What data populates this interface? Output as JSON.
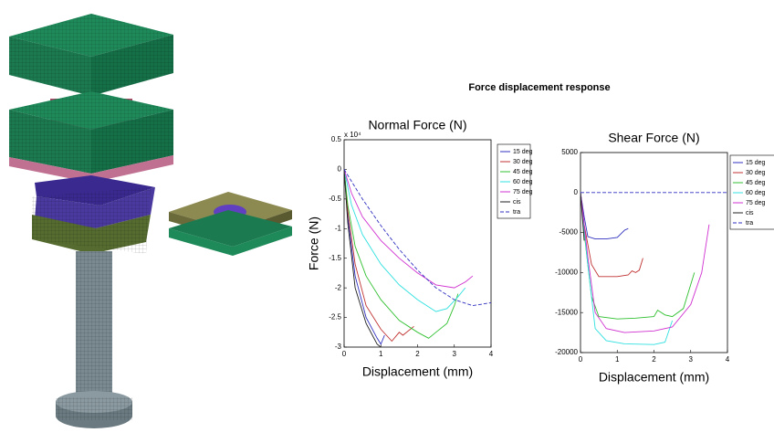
{
  "figure_title": "Force displacement response",
  "chart_data": [
    {
      "type": "line",
      "title": "Normal Force (N)",
      "x_label": "Displacement (mm)",
      "y_label": "Force (N)",
      "y_multiplier": "x 10⁴",
      "xlim": [
        0,
        4
      ],
      "xticks": [
        0,
        1,
        2,
        3,
        4
      ],
      "ylim": [
        -3,
        0.5
      ],
      "yticks": [
        0.5,
        0,
        -0.5,
        -1,
        -1.5,
        -2,
        -2.5,
        -3
      ],
      "series": [
        {
          "name": "15 deg",
          "color": "#3030c0",
          "line_style": "solid",
          "x": [
            0,
            0.1,
            0.3,
            0.6,
            0.9,
            1.0,
            1.1
          ],
          "values": [
            0,
            -0.8,
            -1.8,
            -2.5,
            -2.85,
            -2.95,
            -2.8
          ]
        },
        {
          "name": "30 deg",
          "color": "#c03030",
          "line_style": "solid",
          "x": [
            0,
            0.1,
            0.3,
            0.6,
            1.0,
            1.3,
            1.5,
            1.6,
            1.9
          ],
          "values": [
            0,
            -0.7,
            -1.6,
            -2.3,
            -2.7,
            -2.9,
            -2.75,
            -2.8,
            -2.65
          ]
        },
        {
          "name": "45 deg",
          "color": "#30c030",
          "line_style": "solid",
          "x": [
            0,
            0.1,
            0.3,
            0.6,
            1.0,
            1.5,
            2.0,
            2.3,
            2.5,
            2.8,
            3.0,
            3.1
          ],
          "values": [
            0,
            -0.6,
            -1.3,
            -1.8,
            -2.2,
            -2.55,
            -2.75,
            -2.85,
            -2.75,
            -2.6,
            -2.3,
            -2.1
          ]
        },
        {
          "name": "60 deg",
          "color": "#30e0e0",
          "line_style": "solid",
          "x": [
            0,
            0.2,
            0.5,
            1.0,
            1.5,
            2.0,
            2.5,
            2.8,
            3.1,
            3.3
          ],
          "values": [
            0,
            -0.6,
            -1.1,
            -1.6,
            -1.95,
            -2.2,
            -2.4,
            -2.35,
            -2.15,
            -2.0
          ]
        },
        {
          "name": "75 deg",
          "color": "#d030d0",
          "line_style": "solid",
          "x": [
            0,
            0.2,
            0.5,
            1.0,
            1.5,
            2.0,
            2.5,
            3.0,
            3.3,
            3.5
          ],
          "values": [
            0,
            -0.4,
            -0.8,
            -1.2,
            -1.5,
            -1.75,
            -1.95,
            -2.0,
            -1.9,
            -1.8
          ]
        },
        {
          "name": "cis",
          "color": "#202020",
          "line_style": "solid",
          "x": [
            0,
            0.1,
            0.3,
            0.6,
            0.9,
            1.0
          ],
          "values": [
            0,
            -0.9,
            -2.0,
            -2.6,
            -2.95,
            -3.0
          ]
        },
        {
          "name": "tra",
          "color": "#3030c0",
          "line_style": "dashed",
          "x": [
            0,
            0.5,
            1,
            1.5,
            2,
            2.5,
            3,
            3.5,
            4
          ],
          "values": [
            0,
            -0.5,
            -0.95,
            -1.35,
            -1.7,
            -2.0,
            -2.2,
            -2.3,
            -2.25
          ]
        }
      ]
    },
    {
      "type": "line",
      "title": "Shear Force (N)",
      "x_label": "Displacement (mm)",
      "xlim": [
        0,
        4
      ],
      "xticks": [
        0,
        1,
        2,
        3,
        4
      ],
      "ylim": [
        -20000,
        5000
      ],
      "yticks": [
        5000,
        0,
        -5000,
        -10000,
        -15000,
        -20000
      ],
      "series": [
        {
          "name": "15 deg",
          "color": "#3030c0",
          "line_style": "solid",
          "x": [
            0,
            0.1,
            0.2,
            0.4,
            0.7,
            1.0,
            1.2,
            1.3
          ],
          "values": [
            0,
            -3000,
            -5500,
            -5800,
            -5800,
            -5600,
            -4700,
            -4500
          ]
        },
        {
          "name": "30 deg",
          "color": "#c03030",
          "line_style": "solid",
          "x": [
            0,
            0.1,
            0.3,
            0.5,
            1.0,
            1.3,
            1.4,
            1.5,
            1.6,
            1.7
          ],
          "values": [
            0,
            -4000,
            -9000,
            -10500,
            -10500,
            -10300,
            -9800,
            -10000,
            -9700,
            -8200
          ]
        },
        {
          "name": "45 deg",
          "color": "#30c030",
          "line_style": "solid",
          "x": [
            0,
            0.1,
            0.3,
            0.5,
            1.0,
            1.5,
            2.0,
            2.1,
            2.3,
            2.5,
            2.8,
            3.1
          ],
          "values": [
            0,
            -5000,
            -13000,
            -15500,
            -15800,
            -15700,
            -15500,
            -14700,
            -15300,
            -15500,
            -14500,
            -10000
          ]
        },
        {
          "name": "60 deg",
          "color": "#30e0e0",
          "line_style": "solid",
          "x": [
            0,
            0.2,
            0.4,
            0.7,
            1.2,
            2.0,
            2.3,
            2.5
          ],
          "values": [
            0,
            -9000,
            -17000,
            -18500,
            -18900,
            -19000,
            -18700,
            -16000
          ]
        },
        {
          "name": "75 deg",
          "color": "#d030d0",
          "line_style": "solid",
          "x": [
            0,
            0.2,
            0.4,
            0.7,
            1.2,
            2.0,
            2.5,
            3.0,
            3.3,
            3.5
          ],
          "values": [
            0,
            -8000,
            -15000,
            -17000,
            -17500,
            -17300,
            -16800,
            -14000,
            -10000,
            -4000
          ]
        },
        {
          "name": "cis",
          "color": "#202020",
          "line_style": "solid",
          "x": [
            0,
            0.05,
            0.1
          ],
          "values": [
            0,
            -3000,
            -6000
          ]
        },
        {
          "name": "tra",
          "color": "#3030c0",
          "line_style": "dashed",
          "x": [
            0,
            1,
            2,
            3,
            4
          ],
          "values": [
            0,
            0,
            0,
            0,
            0
          ]
        }
      ]
    }
  ]
}
